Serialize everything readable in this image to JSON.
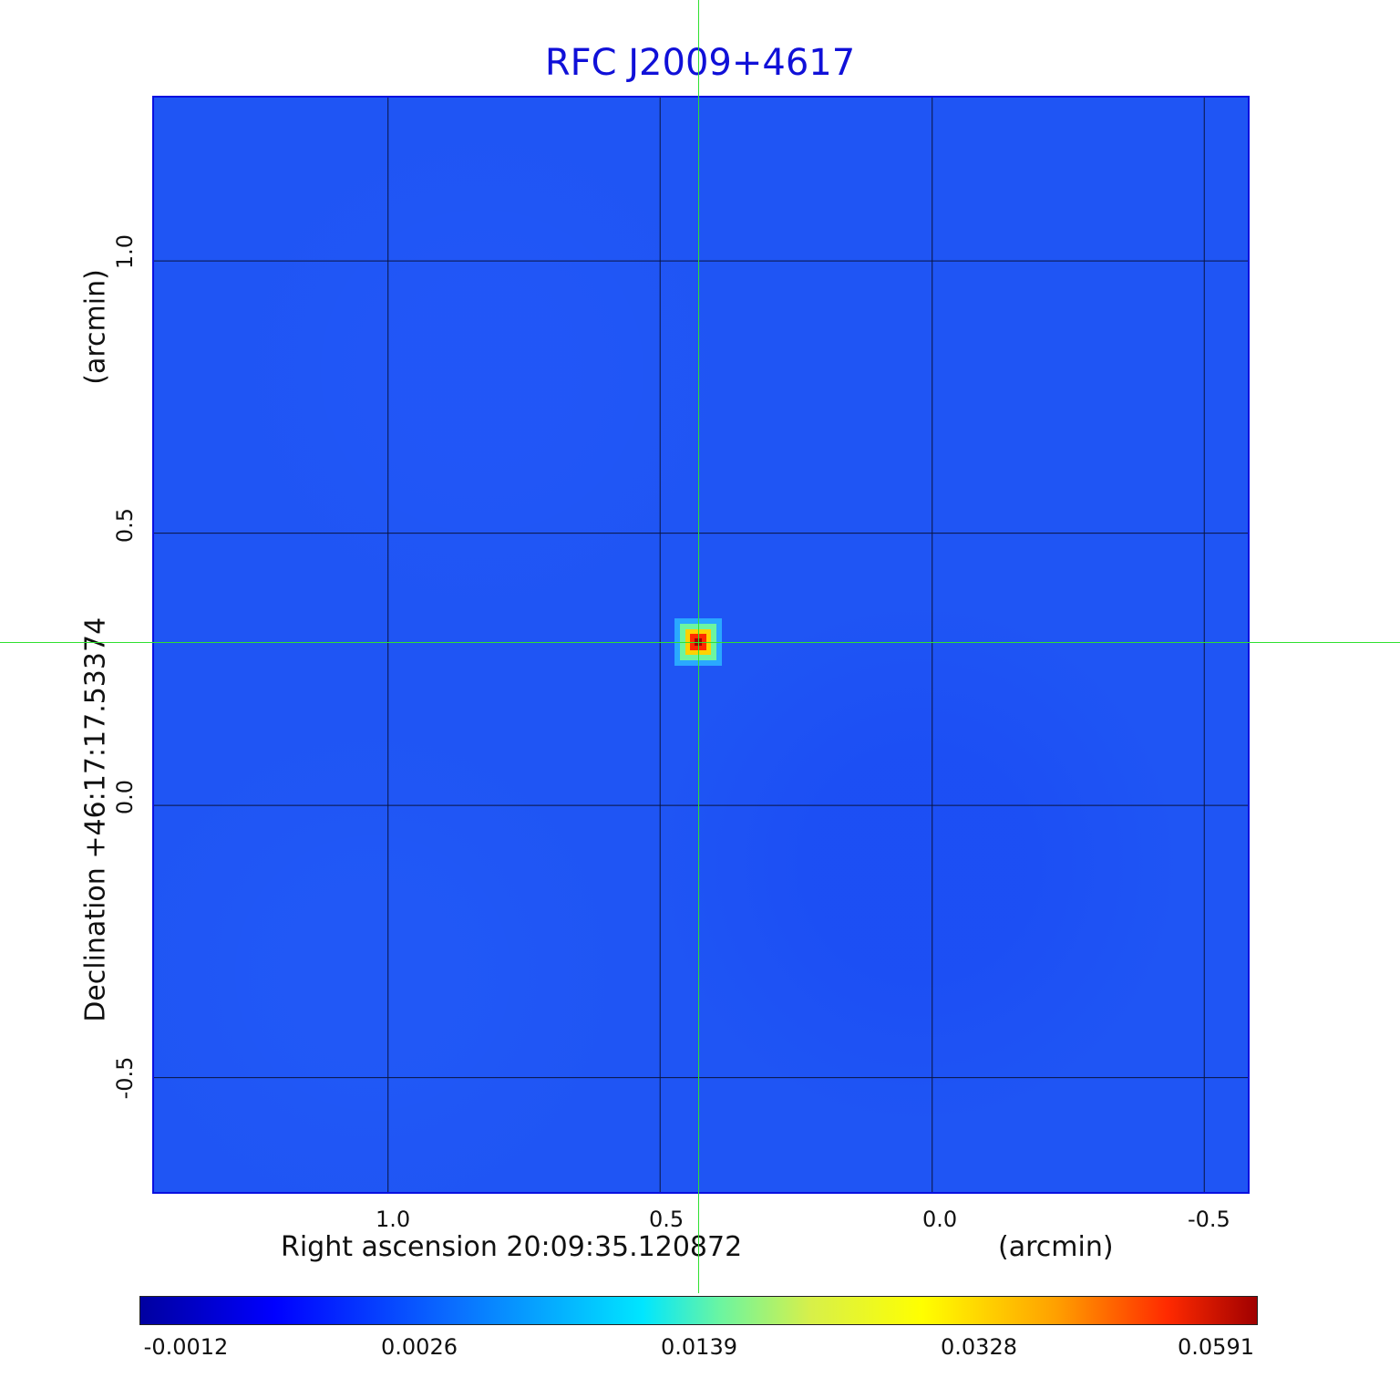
{
  "chart_data": {
    "type": "heatmap",
    "title": "RFC J2009+4617",
    "xlabel": "Right ascension  20:09:35.120872",
    "xunit": "(arcmin)",
    "ylabel": "Declination  +46:17:17.53374",
    "yunit": "(arcmin)",
    "xlim": [
      1.43,
      -0.58
    ],
    "ylim": [
      -0.71,
      1.3
    ],
    "xticks": [
      "1.0",
      "0.5",
      "0.0",
      "-0.5"
    ],
    "yticks": [
      "1.0",
      "0.5",
      "0.0",
      "-0.5"
    ],
    "grid": true,
    "crosshair": {
      "x": 0.43,
      "y": 0.3
    },
    "source_peak": {
      "x": 0.43,
      "y": 0.3,
      "value": 0.0591
    },
    "colorbar": {
      "ticks": [
        "-0.0012",
        "0.0026",
        "0.0139",
        "0.0328",
        "0.0591"
      ],
      "colors": [
        "#0000a0",
        "#0000ff",
        "#00e6ff",
        "#ffff00",
        "#ff2a00",
        "#a00000"
      ]
    }
  }
}
